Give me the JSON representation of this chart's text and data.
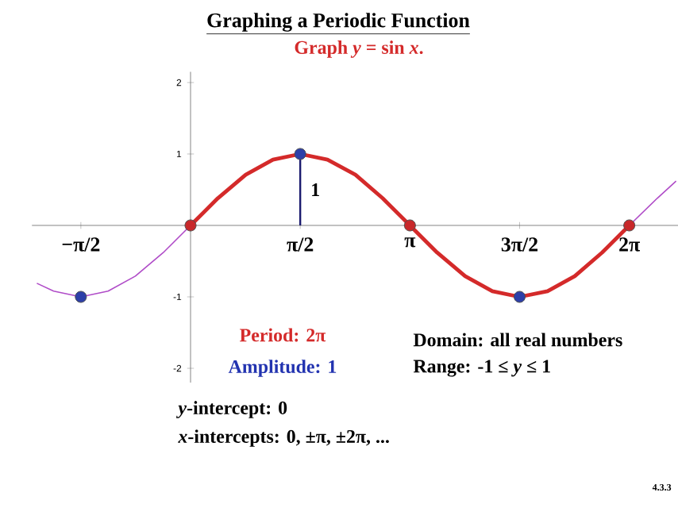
{
  "chart_data": {
    "type": "line",
    "title": "Graphing a Periodic Function",
    "subtitle": "Graph *y* = sin *x*.",
    "xlim": [
      -2.27,
      6.98
    ],
    "ylim": [
      -2.2,
      2.15
    ],
    "xticks": [
      {
        "value": -1.57,
        "label": "−π/2"
      },
      {
        "value": 1.57,
        "label": "π/2"
      },
      {
        "value": 3.14,
        "label": "π"
      },
      {
        "value": 4.71,
        "label": "3π/2"
      },
      {
        "value": 6.28,
        "label": "2π"
      }
    ],
    "yticks": [
      -2,
      -1,
      1,
      2
    ],
    "series": [
      {
        "color": "#b04cc8",
        "marker": "none",
        "x": [
          -2.2,
          -1.96,
          -1.57,
          -1.18,
          -0.79,
          -0.39,
          0
        ],
        "values": [
          -0.81,
          -0.92,
          -1,
          -0.92,
          -0.71,
          -0.38,
          0
        ]
      },
      {
        "color": "#b04cc8",
        "marker": "none",
        "x": [
          6.28,
          6.68,
          6.95
        ],
        "values": [
          0,
          0.38,
          0.62
        ]
      },
      {
        "color": "#d42a2a",
        "marker": "none",
        "x": [
          0,
          0.39,
          0.79,
          1.18,
          1.57,
          1.96,
          2.36,
          2.75,
          3.14,
          3.53,
          3.93,
          4.32,
          4.71,
          5.11,
          5.5,
          5.89,
          6.28
        ],
        "values": [
          0,
          0.38,
          0.71,
          0.92,
          1,
          0.92,
          0.71,
          0.38,
          0,
          -0.38,
          -0.71,
          -0.92,
          -1,
          -0.92,
          -0.71,
          -0.38,
          0
        ]
      },
      {
        "color": "#1a1a6e",
        "marker": "none",
        "x": [
          1.57,
          1.57
        ],
        "values": [
          0,
          1
        ]
      },
      {
        "type": "scatter",
        "color": "#2d3fa8",
        "marker": "circle",
        "x": [
          -1.57,
          1.57,
          4.71
        ],
        "values": [
          -1,
          1,
          -1
        ]
      },
      {
        "type": "scatter",
        "color": "#c8282a",
        "marker": "circle",
        "x": [
          0,
          3.14,
          6.28
        ],
        "values": [
          0,
          0,
          0
        ]
      }
    ],
    "annotations": [
      {
        "text": "1",
        "x": 1.57,
        "y": 0.5
      },
      "Period: 2π",
      "Amplitude: 1",
      "Domain: all real numbers",
      "Range: -1 ≤ *y* ≤ 1",
      "*y*-intercept:  0",
      "*x*-intercepts: 0, ±π, ±2π, ...",
      "4.3.3"
    ]
  }
}
